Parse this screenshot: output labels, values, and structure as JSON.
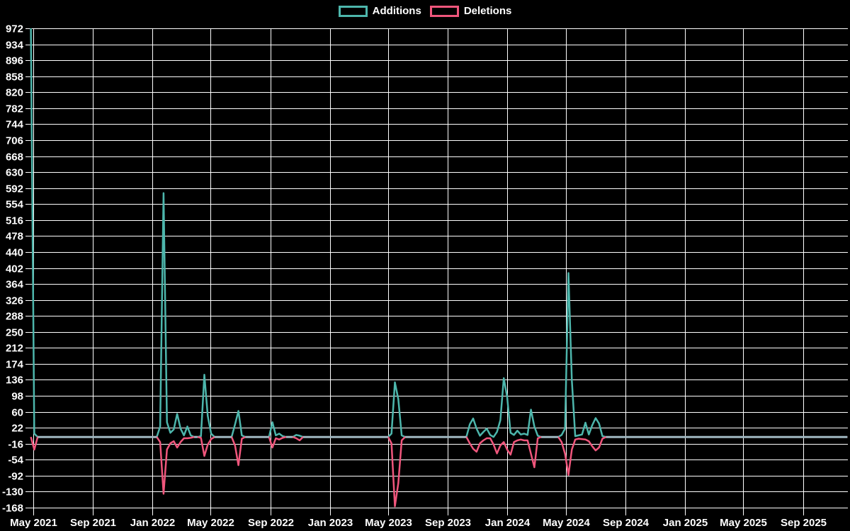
{
  "legend": {
    "items": [
      {
        "label": "Additions",
        "color": "#4DB6AC"
      },
      {
        "label": "Deletions",
        "color": "#F0567C"
      }
    ]
  },
  "chart_data": {
    "type": "line",
    "title": "",
    "xlabel": "",
    "ylabel": "",
    "background_color": "#000000",
    "grid": true,
    "grid_color": "#ffffff",
    "zero_overlap_color": "#9FB6BF",
    "legend_position": "top-center",
    "y_axis": {
      "min": -168,
      "max": 972,
      "step": 38
    },
    "y_tick_labels": [
      972,
      934,
      896,
      858,
      820,
      782,
      744,
      706,
      668,
      630,
      592,
      554,
      516,
      478,
      440,
      402,
      364,
      326,
      288,
      250,
      212,
      174,
      136,
      98,
      60,
      22,
      -16,
      -54,
      -92,
      -130,
      -168
    ],
    "x_tick_labels": [
      "May 2021",
      "Sep 2021",
      "Jan 2022",
      "May 2022",
      "Sep 2022",
      "Jan 2023",
      "May 2023",
      "Sep 2023",
      "Jan 2024",
      "May 2024",
      "Sep 2024",
      "Jan 2025",
      "May 2025",
      "Sep 2025"
    ],
    "series": [
      {
        "name": "Additions",
        "color": "#4DB6AC"
      },
      {
        "name": "Deletions",
        "color": "#F0567C"
      }
    ],
    "points_format": [
      "week_date",
      "additions",
      "deletions"
    ],
    "points": [
      [
        "2021-04-26",
        972,
        0
      ],
      [
        "2021-05-03",
        8,
        -30
      ],
      [
        "2021-05-10",
        0,
        0
      ],
      [
        "2022-01-10",
        0,
        0
      ],
      [
        "2022-01-17",
        25,
        -12
      ],
      [
        "2022-01-24",
        580,
        -135
      ],
      [
        "2022-01-31",
        35,
        -30
      ],
      [
        "2022-02-07",
        10,
        -15
      ],
      [
        "2022-02-14",
        18,
        -10
      ],
      [
        "2022-02-21",
        55,
        -25
      ],
      [
        "2022-02-28",
        20,
        -12
      ],
      [
        "2022-03-07",
        4,
        -3
      ],
      [
        "2022-03-14",
        25,
        -3
      ],
      [
        "2022-03-21",
        4,
        -2
      ],
      [
        "2022-03-28",
        0,
        0
      ],
      [
        "2022-04-04",
        0,
        0
      ],
      [
        "2022-04-11",
        2,
        -2
      ],
      [
        "2022-04-18",
        148,
        -45
      ],
      [
        "2022-04-25",
        50,
        -18
      ],
      [
        "2022-05-02",
        8,
        -5
      ],
      [
        "2022-05-09",
        0,
        0
      ],
      [
        "2022-06-13",
        0,
        0
      ],
      [
        "2022-06-20",
        30,
        -20
      ],
      [
        "2022-06-27",
        62,
        -67
      ],
      [
        "2022-07-04",
        4,
        -4
      ],
      [
        "2022-07-11",
        0,
        0
      ],
      [
        "2022-08-29",
        0,
        0
      ],
      [
        "2022-09-05",
        35,
        -25
      ],
      [
        "2022-09-12",
        4,
        -3
      ],
      [
        "2022-09-19",
        8,
        -6
      ],
      [
        "2022-09-26",
        2,
        -2
      ],
      [
        "2022-10-03",
        0,
        0
      ],
      [
        "2022-10-17",
        0,
        0
      ],
      [
        "2022-10-24",
        5,
        -3
      ],
      [
        "2022-10-31",
        3,
        -8
      ],
      [
        "2022-11-07",
        0,
        0
      ],
      [
        "2023-05-01",
        0,
        0
      ],
      [
        "2023-05-08",
        8,
        -15
      ],
      [
        "2023-05-15",
        130,
        -165
      ],
      [
        "2023-05-22",
        90,
        -110
      ],
      [
        "2023-05-29",
        4,
        -8
      ],
      [
        "2023-06-05",
        0,
        0
      ],
      [
        "2023-10-09",
        0,
        0
      ],
      [
        "2023-10-16",
        30,
        -15
      ],
      [
        "2023-10-23",
        44,
        -28
      ],
      [
        "2023-10-30",
        20,
        -35
      ],
      [
        "2023-11-06",
        3,
        -15
      ],
      [
        "2023-11-13",
        12,
        -8
      ],
      [
        "2023-11-20",
        20,
        -3
      ],
      [
        "2023-11-27",
        5,
        -3
      ],
      [
        "2023-12-04",
        0,
        -18
      ],
      [
        "2023-12-11",
        12,
        -39
      ],
      [
        "2023-12-18",
        40,
        -20
      ],
      [
        "2023-12-25",
        140,
        -12
      ],
      [
        "2024-01-01",
        95,
        -30
      ],
      [
        "2024-01-08",
        10,
        -42
      ],
      [
        "2024-01-15",
        5,
        -12
      ],
      [
        "2024-01-22",
        15,
        -8
      ],
      [
        "2024-01-29",
        6,
        -6
      ],
      [
        "2024-02-05",
        8,
        -8
      ],
      [
        "2024-02-12",
        5,
        -8
      ],
      [
        "2024-02-19",
        65,
        -40
      ],
      [
        "2024-02-26",
        25,
        -72
      ],
      [
        "2024-03-04",
        3,
        -3
      ],
      [
        "2024-03-11",
        0,
        0
      ],
      [
        "2024-04-15",
        0,
        0
      ],
      [
        "2024-04-22",
        5,
        -12
      ],
      [
        "2024-04-29",
        20,
        -40
      ],
      [
        "2024-05-06",
        390,
        -90
      ],
      [
        "2024-05-13",
        135,
        -30
      ],
      [
        "2024-05-20",
        2,
        -6
      ],
      [
        "2024-05-27",
        4,
        -4
      ],
      [
        "2024-06-03",
        6,
        -5
      ],
      [
        "2024-06-10",
        34,
        -6
      ],
      [
        "2024-06-17",
        6,
        -10
      ],
      [
        "2024-06-24",
        28,
        -22
      ],
      [
        "2024-07-01",
        45,
        -32
      ],
      [
        "2024-07-08",
        32,
        -25
      ],
      [
        "2024-07-15",
        2,
        -4
      ],
      [
        "2024-07-22",
        0,
        0
      ],
      [
        "2025-12-01",
        0,
        0
      ]
    ]
  }
}
